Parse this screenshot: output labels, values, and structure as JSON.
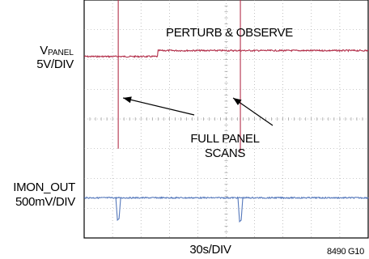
{
  "chart_data": {
    "type": "line",
    "title": "",
    "grid": true,
    "divisions": {
      "x": 10,
      "y": 8
    },
    "xlabel": "30s/DIV",
    "ylabel": "",
    "figure_id": "8490 G10",
    "series": [
      {
        "name": "VPANEL",
        "label_main": "V",
        "label_sub": "PANEL",
        "scale": "5V/DIV",
        "color": "#b3304b",
        "level_div_before_step": 6.1,
        "level_div_after_step": 6.3,
        "step_time_div": 2.6,
        "scan_spikes": [
          {
            "time_div": 1.2,
            "top_div": 8.0,
            "bottom_div": 3.0
          },
          {
            "time_div": 5.5,
            "top_div": 8.0,
            "bottom_div": 2.9
          }
        ]
      },
      {
        "name": "IMON_OUT",
        "scale": "500mV/DIV",
        "color": "#5578bb",
        "level_div": 1.35,
        "dips": [
          {
            "time_div": 1.2,
            "bottom_div": 0.6
          },
          {
            "time_div": 5.5,
            "bottom_div": 0.55
          }
        ]
      }
    ],
    "annotations": [
      {
        "text": "PERTURB & OBSERVE"
      },
      {
        "text_line1": "FULL PANEL",
        "text_line2": "SCANS"
      }
    ]
  }
}
